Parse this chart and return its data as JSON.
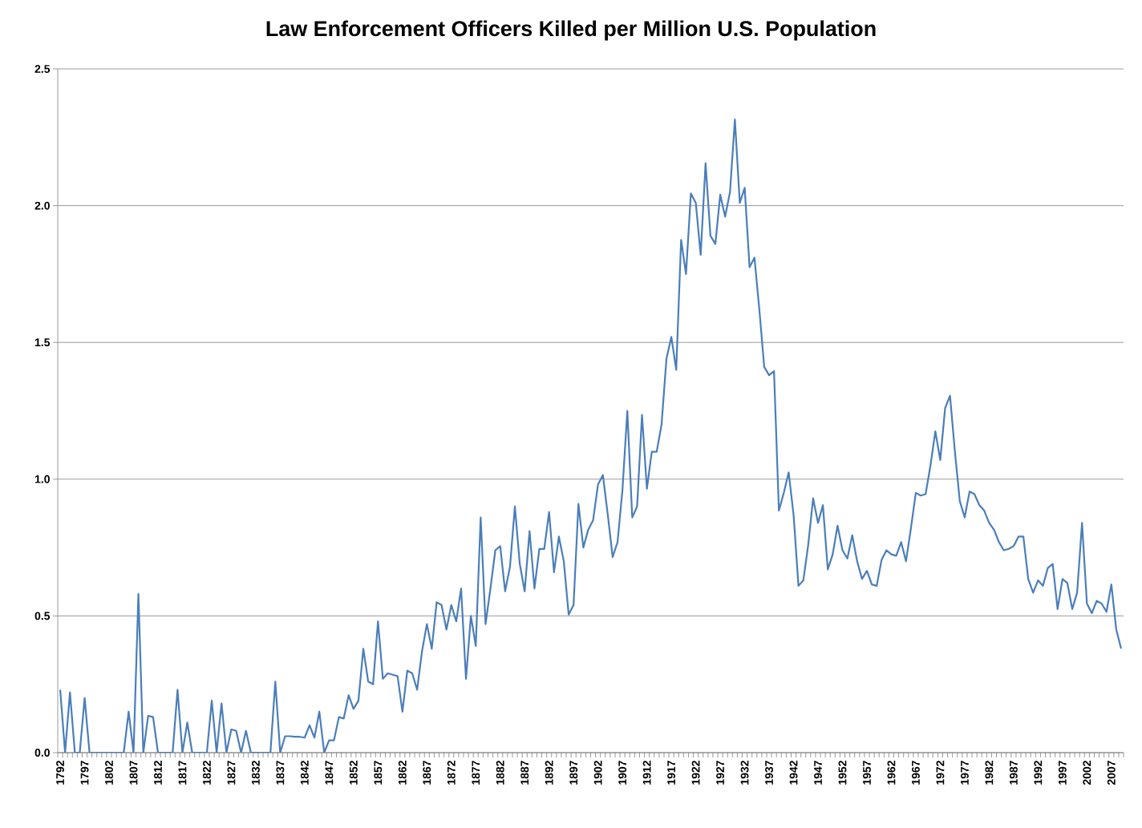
{
  "chart_data": {
    "type": "line",
    "title": "Law Enforcement Officers Killed per Million U.S. Population",
    "categories": [
      "1792",
      null,
      null,
      null,
      null,
      "1797",
      null,
      null,
      null,
      null,
      "1802",
      null,
      null,
      null,
      null,
      "1807",
      null,
      null,
      null,
      null,
      "1812",
      null,
      null,
      null,
      null,
      "1817",
      null,
      null,
      null,
      null,
      "1822",
      null,
      null,
      null,
      null,
      "1827",
      null,
      null,
      null,
      null,
      "1832",
      null,
      null,
      null,
      null,
      "1837",
      null,
      null,
      null,
      null,
      "1842",
      null,
      null,
      null,
      null,
      "1847",
      null,
      null,
      null,
      null,
      "1852",
      null,
      null,
      null,
      null,
      "1857",
      null,
      null,
      null,
      null,
      "1862",
      null,
      null,
      null,
      null,
      "1867",
      null,
      null,
      null,
      null,
      "1872",
      null,
      null,
      null,
      null,
      "1877",
      null,
      null,
      null,
      null,
      "1882",
      null,
      null,
      null,
      null,
      "1887",
      null,
      null,
      null,
      null,
      "1892",
      null,
      null,
      null,
      null,
      "1897",
      null,
      null,
      null,
      null,
      "1902",
      null,
      null,
      null,
      null,
      "1907",
      null,
      null,
      null,
      null,
      "1912",
      null,
      null,
      null,
      null,
      "1917",
      null,
      null,
      null,
      null,
      "1922",
      null,
      null,
      null,
      null,
      "1927",
      null,
      null,
      null,
      null,
      "1932",
      null,
      null,
      null,
      null,
      "1937",
      null,
      null,
      null,
      null,
      "1942",
      null,
      null,
      null,
      null,
      "1947",
      null,
      null,
      null,
      null,
      "1952",
      null,
      null,
      null,
      null,
      "1957",
      null,
      null,
      null,
      null,
      "1962",
      null,
      null,
      null,
      null,
      "1967",
      null,
      null,
      null,
      null,
      "1972",
      null,
      null,
      null,
      null,
      "1977",
      null,
      null,
      null,
      null,
      "1982",
      null,
      null,
      null,
      null,
      "1987",
      null,
      null,
      null,
      null,
      "1992",
      null,
      null,
      null,
      null,
      "1997",
      null,
      null,
      null,
      null,
      "2002",
      null,
      null,
      null,
      null,
      "2007",
      null,
      null
    ],
    "series": [
      {
        "color": "#4a7ebb",
        "values": [
          0.23,
          0,
          0.22,
          0,
          0,
          0.2,
          0,
          0,
          0,
          0,
          0,
          0,
          0,
          0,
          0.15,
          0,
          0.58,
          0,
          0.135,
          0.13,
          0,
          0,
          0,
          0,
          0.23,
          0,
          0.11,
          0,
          0,
          0,
          0,
          0.19,
          0,
          0.18,
          0,
          0.085,
          0.08,
          0,
          0.08,
          0,
          0,
          0,
          0,
          0,
          0.26,
          0,
          0.06,
          0.06,
          0.058,
          0.058,
          0.055,
          0.1,
          0.055,
          0.15,
          0,
          0.045,
          0.045,
          0.13,
          0.125,
          0.21,
          0.16,
          0.19,
          0.38,
          0.26,
          0.25,
          0.48,
          0.27,
          0.29,
          0.285,
          0.28,
          0.15,
          0.3,
          0.29,
          0.23,
          0.37,
          0.47,
          0.38,
          0.55,
          0.54,
          0.45,
          0.54,
          0.48,
          0.6,
          0.27,
          0.5,
          0.39,
          0.86,
          0.47,
          0.6,
          0.74,
          0.755,
          0.59,
          0.68,
          0.9,
          0.69,
          0.59,
          0.81,
          0.6,
          0.745,
          0.745,
          0.88,
          0.66,
          0.79,
          0.7,
          0.505,
          0.54,
          0.91,
          0.75,
          0.815,
          0.85,
          0.98,
          1.015,
          0.87,
          0.715,
          0.77,
          0.96,
          1.25,
          0.86,
          0.9,
          1.235,
          0.965,
          1.1,
          1.1,
          1.2,
          1.44,
          1.52,
          1.4,
          1.875,
          1.75,
          2.045,
          2.01,
          1.82,
          2.155,
          1.89,
          1.86,
          2.04,
          1.96,
          2.05,
          2.315,
          2.01,
          2.065,
          1.775,
          1.81,
          1.62,
          1.41,
          1.38,
          1.395,
          0.885,
          0.95,
          1.025,
          0.87,
          0.61,
          0.63,
          0.76,
          0.93,
          0.84,
          0.905,
          0.67,
          0.725,
          0.83,
          0.74,
          0.71,
          0.795,
          0.7,
          0.635,
          0.665,
          0.615,
          0.61,
          0.705,
          0.74,
          0.725,
          0.72,
          0.77,
          0.7,
          0.82,
          0.95,
          0.94,
          0.945,
          1.05,
          1.175,
          1.07,
          1.26,
          1.305,
          1.1,
          0.92,
          0.86,
          0.955,
          0.945,
          0.905,
          0.885,
          0.84,
          0.815,
          0.77,
          0.74,
          0.745,
          0.755,
          0.79,
          0.79,
          0.635,
          0.585,
          0.63,
          0.61,
          0.675,
          0.69,
          0.525,
          0.635,
          0.62,
          0.525,
          0.585,
          0.84,
          0.545,
          0.51,
          0.555,
          0.545,
          0.515,
          0.615,
          0.45,
          0.38
        ]
      }
    ],
    "ylim": [
      0,
      2.5
    ],
    "yticks": [
      {
        "value": 0,
        "label": "0.0"
      },
      0.5,
      {
        "value": 1,
        "label": "1.0"
      },
      1.5,
      {
        "value": 2,
        "label": "2.0"
      },
      2.5
    ],
    "grid": "y"
  }
}
